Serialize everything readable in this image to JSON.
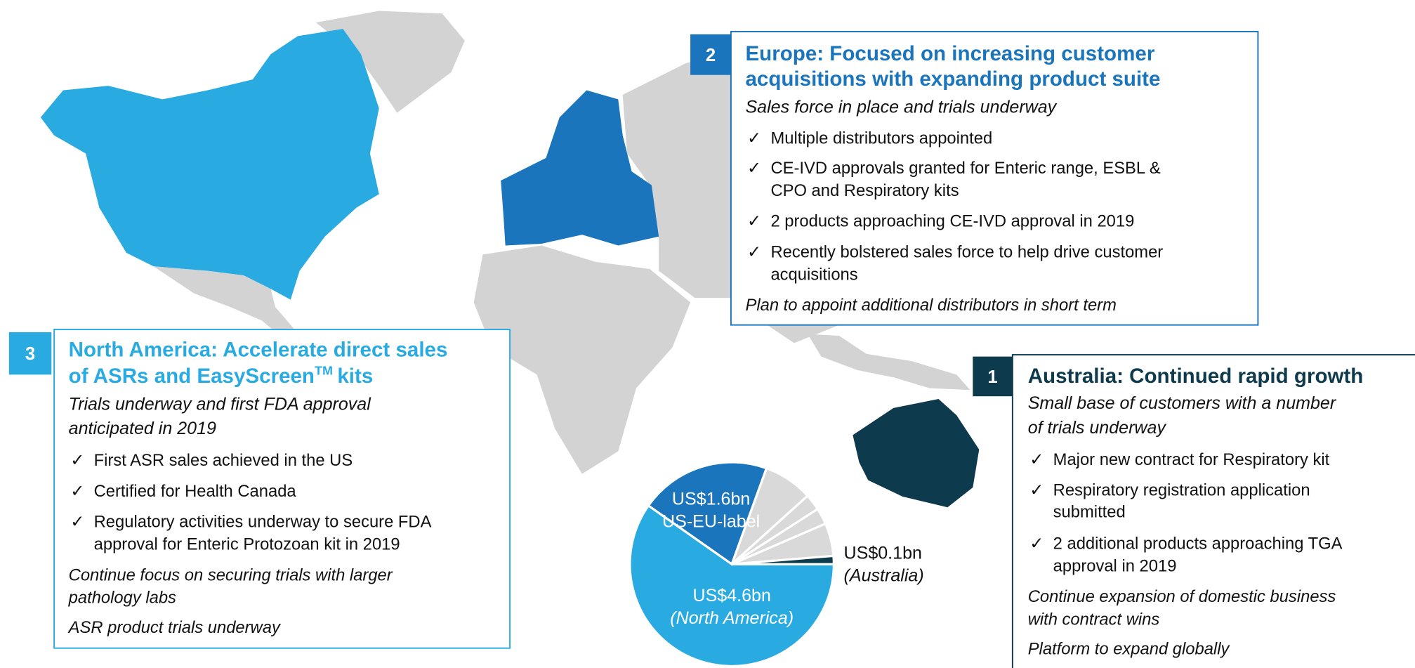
{
  "boxes": [
    {
      "number": "2",
      "title": [
        "Europe: Focused on increasing customer",
        "acquisitions with expanding product suite"
      ],
      "subtitle": [
        "Sales force in place and trials underway"
      ],
      "bullets": [
        [
          "Multiple distributors appointed"
        ],
        [
          "CE-IVD approvals granted for Enteric range, ESBL &",
          "CPO and Respiratory kits"
        ],
        [
          "2 products approaching CE-IVD approval in 2019"
        ],
        [
          "Recently bolstered sales force to help drive customer",
          "acquisitions"
        ]
      ],
      "notes": [
        [
          "Plan to appoint additional distributors in short term"
        ]
      ]
    },
    {
      "number": "3",
      "title": [
        "North America: Accelerate direct sales",
        "of ASRs and EasyScreen"
      ],
      "title_sup": "TM",
      "title_end": "kits",
      "subtitle": [
        "Trials underway and first FDA approval",
        "anticipated in 2019"
      ],
      "bullets": [
        [
          "First ASR sales achieved in the US"
        ],
        [
          "Certified for Health Canada"
        ],
        [
          "Regulatory activities underway to secure FDA",
          "approval for Enteric Protozoan kit in 2019"
        ]
      ],
      "notes": [
        [
          "Continue focus on securing trials with larger",
          "pathology labs"
        ],
        [
          "ASR product trials underway"
        ]
      ]
    },
    {
      "number": "1",
      "title": [
        "Australia: Continued rapid growth"
      ],
      "subtitle": [
        "Small base of customers with a number",
        "of trials underway"
      ],
      "bullets": [
        [
          "Major new contract for Respiratory kit"
        ],
        [
          "Respiratory registration application",
          "submitted"
        ],
        [
          "2 additional products approaching TGA",
          "approval in 2019"
        ]
      ],
      "notes": [
        [
          "Continue expansion of domestic business",
          "with contract wins"
        ],
        [
          "Platform to expand globally"
        ]
      ]
    }
  ],
  "check": "✓",
  "chart_data": {
    "type": "pie",
    "categories": [
      "(North America)",
      "US-EU-label",
      null,
      null,
      null,
      null,
      "(Australia)"
    ],
    "values": [
      4.6,
      1.6,
      0.6,
      0.2,
      0.2,
      0.4,
      0.1
    ],
    "value_labels": [
      "US$4.6bn",
      "US$1.6bn",
      null,
      null,
      null,
      null,
      "US$0.1bn"
    ],
    "colors": [
      "#29abe2",
      "#1a75bc",
      "#d9d9d9",
      "#d9d9d9",
      "#d9d9d9",
      "#d9d9d9",
      "#0d3a4c"
    ]
  }
}
